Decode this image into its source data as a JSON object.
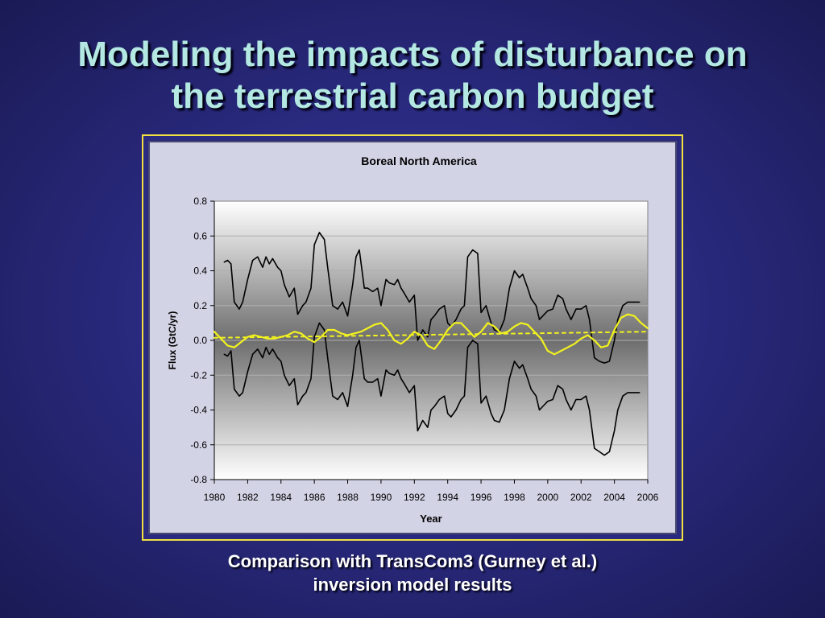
{
  "slide": {
    "title_line1": "Modeling the impacts of disturbance on",
    "title_line2": "the terrestrial carbon budget",
    "caption_line1": "Comparison with TransCom3 (Gurney et al.)",
    "caption_line2": "inversion model results"
  },
  "colors": {
    "title": "#b4e8e2",
    "frame_border": "#f0e040",
    "model_line": "#f2f21e",
    "envelope_line": "#000000"
  },
  "chart_data": {
    "type": "line",
    "title": "Boreal North America",
    "xlabel": "Year",
    "ylabel": "Flux (GtC/yr)",
    "xlim": [
      1980,
      2006
    ],
    "ylim": [
      -0.8,
      0.8
    ],
    "xticks": [
      1980,
      1982,
      1984,
      1986,
      1988,
      1990,
      1992,
      1994,
      1996,
      1998,
      2000,
      2002,
      2004,
      2006
    ],
    "yticks": [
      0.8,
      0.6,
      0.4,
      0.2,
      0.0,
      -0.2,
      -0.4,
      -0.6,
      -0.8
    ],
    "ytick_labels": [
      "0.8",
      "0.6",
      "0.4",
      "0.2",
      "0.0",
      "-0.2",
      "-0.4",
      "-0.6",
      "-0.8"
    ],
    "grid": true,
    "legend": "none",
    "series": [
      {
        "role": "upper envelope",
        "color": "#000000",
        "style": "solid",
        "x": [
          1980.6,
          1980.8,
          1981.0,
          1981.2,
          1981.5,
          1981.7,
          1982.0,
          1982.3,
          1982.6,
          1982.9,
          1983.1,
          1983.3,
          1983.5,
          1983.8,
          1984.0,
          1984.2,
          1984.5,
          1984.8,
          1985.0,
          1985.3,
          1985.5,
          1985.8,
          1986.0,
          1986.3,
          1986.6,
          1986.8,
          1987.1,
          1987.4,
          1987.7,
          1988.0,
          1988.3,
          1988.5,
          1988.7,
          1989.0,
          1989.2,
          1989.5,
          1989.8,
          1990.0,
          1990.3,
          1990.5,
          1990.8,
          1991.0,
          1991.2,
          1991.4,
          1991.7,
          1992.0,
          1992.2,
          1992.5,
          1992.8,
          1993.0,
          1993.2,
          1993.5,
          1993.8,
          1994.0,
          1994.2,
          1994.5,
          1994.8,
          1995.0,
          1995.2,
          1995.5,
          1995.8,
          1996.0,
          1996.3,
          1996.6,
          1996.8,
          1997.1,
          1997.4,
          1997.7,
          1998.0,
          1998.3,
          1998.5,
          1998.8,
          1999.0,
          1999.3,
          1999.5,
          1999.8,
          2000.0,
          2000.3,
          2000.6,
          2000.9,
          2001.1,
          2001.4,
          2001.7,
          2002.0,
          2002.3,
          2002.5,
          2002.8,
          2003.1,
          2003.4,
          2003.7,
          2004.0,
          2004.2,
          2004.5,
          2004.8,
          2005.0,
          2005.3,
          2005.5
        ],
        "y": [
          0.45,
          0.46,
          0.44,
          0.22,
          0.18,
          0.22,
          0.35,
          0.46,
          0.48,
          0.42,
          0.48,
          0.44,
          0.47,
          0.42,
          0.4,
          0.32,
          0.25,
          0.3,
          0.15,
          0.2,
          0.22,
          0.3,
          0.55,
          0.62,
          0.58,
          0.42,
          0.2,
          0.18,
          0.22,
          0.14,
          0.32,
          0.48,
          0.52,
          0.3,
          0.3,
          0.28,
          0.3,
          0.2,
          0.35,
          0.33,
          0.32,
          0.35,
          0.3,
          0.27,
          0.22,
          0.26,
          0.0,
          0.06,
          0.02,
          0.12,
          0.14,
          0.18,
          0.2,
          0.1,
          0.08,
          0.12,
          0.18,
          0.2,
          0.48,
          0.52,
          0.5,
          0.16,
          0.2,
          0.1,
          0.06,
          0.05,
          0.12,
          0.3,
          0.4,
          0.36,
          0.38,
          0.3,
          0.24,
          0.2,
          0.12,
          0.15,
          0.17,
          0.18,
          0.26,
          0.24,
          0.18,
          0.12,
          0.18,
          0.18,
          0.2,
          0.12,
          -0.1,
          -0.12,
          -0.13,
          -0.12,
          0.0,
          0.12,
          0.2,
          0.22,
          0.22,
          0.22,
          0.22
        ]
      },
      {
        "role": "lower envelope",
        "color": "#000000",
        "style": "solid",
        "x": [
          1980.6,
          1980.8,
          1981.0,
          1981.2,
          1981.5,
          1981.7,
          1982.0,
          1982.3,
          1982.6,
          1982.9,
          1983.1,
          1983.3,
          1983.5,
          1983.8,
          1984.0,
          1984.2,
          1984.5,
          1984.8,
          1985.0,
          1985.3,
          1985.5,
          1985.8,
          1986.0,
          1986.3,
          1986.6,
          1986.8,
          1987.1,
          1987.4,
          1987.7,
          1988.0,
          1988.3,
          1988.5,
          1988.7,
          1989.0,
          1989.2,
          1989.5,
          1989.8,
          1990.0,
          1990.3,
          1990.5,
          1990.8,
          1991.0,
          1991.2,
          1991.4,
          1991.7,
          1992.0,
          1992.2,
          1992.5,
          1992.8,
          1993.0,
          1993.2,
          1993.5,
          1993.8,
          1994.0,
          1994.2,
          1994.5,
          1994.8,
          1995.0,
          1995.2,
          1995.5,
          1995.8,
          1996.0,
          1996.3,
          1996.6,
          1996.8,
          1997.1,
          1997.4,
          1997.7,
          1998.0,
          1998.3,
          1998.5,
          1998.8,
          1999.0,
          1999.3,
          1999.5,
          1999.8,
          2000.0,
          2000.3,
          2000.6,
          2000.9,
          2001.1,
          2001.4,
          2001.7,
          2002.0,
          2002.3,
          2002.5,
          2002.8,
          2003.1,
          2003.4,
          2003.7,
          2004.0,
          2004.2,
          2004.5,
          2004.8,
          2005.0,
          2005.3,
          2005.5
        ],
        "y": [
          -0.08,
          -0.09,
          -0.06,
          -0.28,
          -0.32,
          -0.3,
          -0.18,
          -0.08,
          -0.05,
          -0.1,
          -0.04,
          -0.08,
          -0.05,
          -0.1,
          -0.12,
          -0.2,
          -0.26,
          -0.22,
          -0.37,
          -0.32,
          -0.3,
          -0.22,
          0.02,
          0.1,
          0.06,
          -0.1,
          -0.32,
          -0.34,
          -0.3,
          -0.38,
          -0.2,
          -0.04,
          0.0,
          -0.22,
          -0.24,
          -0.24,
          -0.22,
          -0.32,
          -0.17,
          -0.19,
          -0.2,
          -0.17,
          -0.22,
          -0.25,
          -0.3,
          -0.26,
          -0.52,
          -0.46,
          -0.5,
          -0.4,
          -0.38,
          -0.34,
          -0.32,
          -0.42,
          -0.44,
          -0.4,
          -0.34,
          -0.32,
          -0.04,
          0.0,
          -0.02,
          -0.36,
          -0.32,
          -0.42,
          -0.46,
          -0.47,
          -0.4,
          -0.22,
          -0.12,
          -0.16,
          -0.14,
          -0.22,
          -0.28,
          -0.32,
          -0.4,
          -0.37,
          -0.35,
          -0.34,
          -0.26,
          -0.28,
          -0.34,
          -0.4,
          -0.34,
          -0.34,
          -0.32,
          -0.4,
          -0.62,
          -0.64,
          -0.66,
          -0.64,
          -0.52,
          -0.4,
          -0.32,
          -0.3,
          -0.3,
          -0.3,
          -0.3
        ]
      },
      {
        "role": "model estimate",
        "color": "#f2f21e",
        "style": "solid",
        "x": [
          1980.0,
          1980.4,
          1980.8,
          1981.2,
          1981.6,
          1982.0,
          1982.4,
          1982.8,
          1983.2,
          1983.6,
          1984.0,
          1984.4,
          1984.8,
          1985.2,
          1985.6,
          1986.0,
          1986.4,
          1986.8,
          1987.2,
          1987.6,
          1988.0,
          1988.4,
          1988.8,
          1989.2,
          1989.6,
          1990.0,
          1990.4,
          1990.8,
          1991.2,
          1991.6,
          1992.0,
          1992.4,
          1992.8,
          1993.2,
          1993.6,
          1994.0,
          1994.4,
          1994.8,
          1995.2,
          1995.6,
          1996.0,
          1996.4,
          1996.8,
          1997.2,
          1997.6,
          1998.0,
          1998.4,
          1998.8,
          1999.2,
          1999.6,
          2000.0,
          2000.4,
          2000.8,
          2001.2,
          2001.6,
          2002.0,
          2002.4,
          2002.8,
          2003.2,
          2003.6,
          2004.0,
          2004.4,
          2004.8,
          2005.2,
          2005.6,
          2006.0
        ],
        "y": [
          0.05,
          0.01,
          -0.03,
          -0.04,
          -0.01,
          0.02,
          0.03,
          0.02,
          0.01,
          0.01,
          0.02,
          0.03,
          0.05,
          0.04,
          0.01,
          -0.01,
          0.02,
          0.06,
          0.06,
          0.04,
          0.03,
          0.04,
          0.05,
          0.07,
          0.09,
          0.1,
          0.06,
          0.0,
          -0.02,
          0.01,
          0.05,
          0.03,
          -0.03,
          -0.05,
          0.0,
          0.06,
          0.1,
          0.1,
          0.06,
          0.02,
          0.05,
          0.1,
          0.08,
          0.04,
          0.05,
          0.08,
          0.1,
          0.09,
          0.05,
          0.01,
          -0.06,
          -0.08,
          -0.06,
          -0.04,
          -0.02,
          0.01,
          0.03,
          0.0,
          -0.04,
          -0.03,
          0.06,
          0.13,
          0.15,
          0.14,
          0.1,
          0.07
        ]
      },
      {
        "role": "trend",
        "color": "#f2f21e",
        "style": "dotted",
        "x": [
          1980.0,
          2006.0
        ],
        "y": [
          0.015,
          0.05
        ]
      }
    ]
  }
}
